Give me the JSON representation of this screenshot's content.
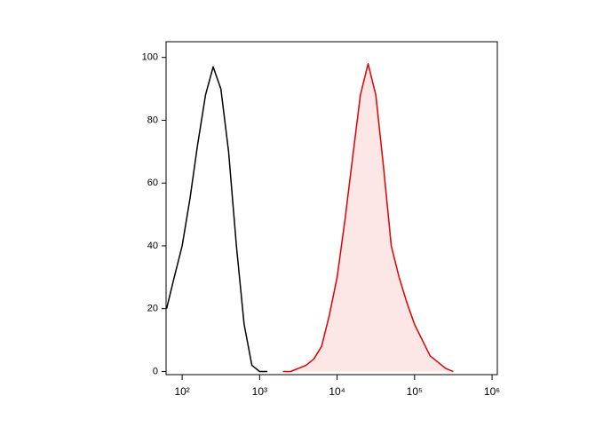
{
  "chart_data": {
    "type": "line",
    "x": [
      63,
      79,
      100,
      126,
      158,
      200,
      251,
      316,
      398,
      501,
      631,
      794,
      1000,
      1259,
      1585,
      1995,
      2512,
      3162,
      3981,
      5012,
      6310,
      7943,
      10000,
      12589,
      15849,
      19953,
      25119,
      31623,
      39811,
      50119,
      63096,
      79433,
      100000,
      125893,
      158489,
      199526,
      251189,
      316228
    ],
    "series": [
      {
        "color": "#000000",
        "values": [
          20,
          30,
          40,
          55,
          72,
          88,
          97,
          90,
          70,
          40,
          15,
          2,
          0,
          0,
          null,
          null,
          null,
          null,
          null,
          null,
          null,
          null,
          null,
          null,
          null,
          null,
          null,
          null,
          null,
          null,
          null,
          null,
          null,
          null,
          null,
          null,
          null,
          null
        ]
      },
      {
        "color": "#e00000",
        "fill": "#fde6e6",
        "values": [
          null,
          null,
          null,
          null,
          null,
          null,
          null,
          null,
          null,
          null,
          null,
          null,
          null,
          null,
          null,
          0,
          0,
          1,
          2,
          4,
          8,
          18,
          30,
          48,
          68,
          88,
          98,
          88,
          65,
          40,
          30,
          22,
          15,
          10,
          5,
          3,
          1,
          0
        ]
      }
    ],
    "xlog": true,
    "xlim": [
      62,
      1170000
    ],
    "ylim": [
      -1,
      105
    ],
    "xticks": [
      {
        "value": 100,
        "label": "10²"
      },
      {
        "value": 1000,
        "label": "10³"
      },
      {
        "value": 10000,
        "label": "10⁴"
      },
      {
        "value": 100000,
        "label": "10⁵"
      },
      {
        "value": 1000000,
        "label": "10⁶"
      }
    ],
    "yticks": [
      0,
      20,
      40,
      60,
      80,
      100
    ]
  }
}
